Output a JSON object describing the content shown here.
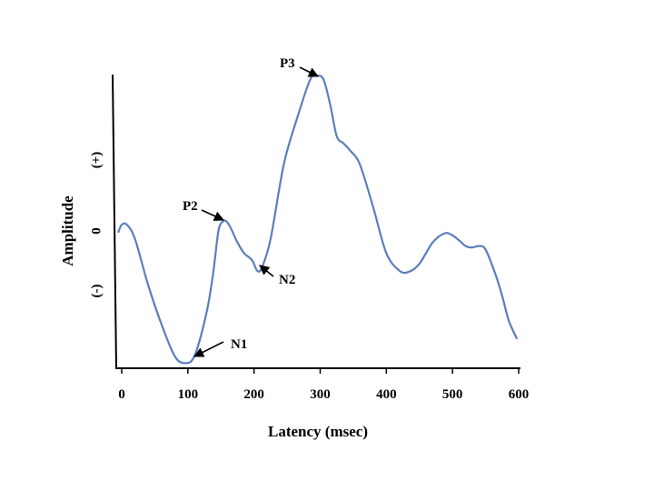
{
  "chart_data": {
    "type": "line",
    "title": "",
    "xlabel": "Latency (msec)",
    "ylabel": "Amplitude",
    "xlim": [
      0,
      600
    ],
    "ylim": [
      -2,
      2
    ],
    "x_ticks": [
      0,
      100,
      200,
      300,
      400,
      500,
      600
    ],
    "y_tick_labels": [
      "(-)",
      "0",
      "(+)"
    ],
    "y_tick_values": [
      -1,
      0,
      1
    ],
    "grid": false,
    "legend": "none",
    "series": [
      {
        "color": "#5b7fbd",
        "x": [
          -5,
          0,
          8,
          20,
          40,
          60,
          80,
          95,
          110,
          128,
          138,
          146,
          152,
          158,
          165,
          175,
          185,
          197,
          205,
          212,
          225,
          245,
          265,
          285,
          295,
          305,
          315,
          325,
          335,
          345,
          360,
          380,
          400,
          420,
          435,
          450,
          470,
          488,
          500,
          510,
          520,
          530,
          540,
          550,
          565,
          575,
          585,
          597
        ],
        "y": [
          0.0,
          0.1,
          0.1,
          -0.1,
          -0.75,
          -1.3,
          -1.75,
          -1.85,
          -1.75,
          -1.15,
          -0.6,
          0.0,
          0.14,
          0.15,
          0.05,
          -0.15,
          -0.3,
          -0.4,
          -0.55,
          -0.5,
          -0.1,
          0.95,
          1.6,
          2.15,
          2.2,
          2.15,
          1.8,
          1.35,
          1.25,
          1.15,
          0.95,
          0.35,
          -0.3,
          -0.55,
          -0.56,
          -0.45,
          -0.15,
          -0.02,
          -0.05,
          -0.12,
          -0.2,
          -0.22,
          -0.2,
          -0.25,
          -0.6,
          -0.9,
          -1.25,
          -1.5
        ]
      }
    ],
    "annotations": [
      {
        "label": "P3",
        "x": 292,
        "y": 2.2,
        "text_pos": "upper-left"
      },
      {
        "label": "P2",
        "x": 152,
        "y": 0.14,
        "text_pos": "left"
      },
      {
        "label": "N2",
        "x": 205,
        "y": -0.55,
        "text_pos": "lower-right"
      },
      {
        "label": "N1",
        "x": 100,
        "y": -1.85,
        "text_pos": "upper-right"
      }
    ]
  }
}
